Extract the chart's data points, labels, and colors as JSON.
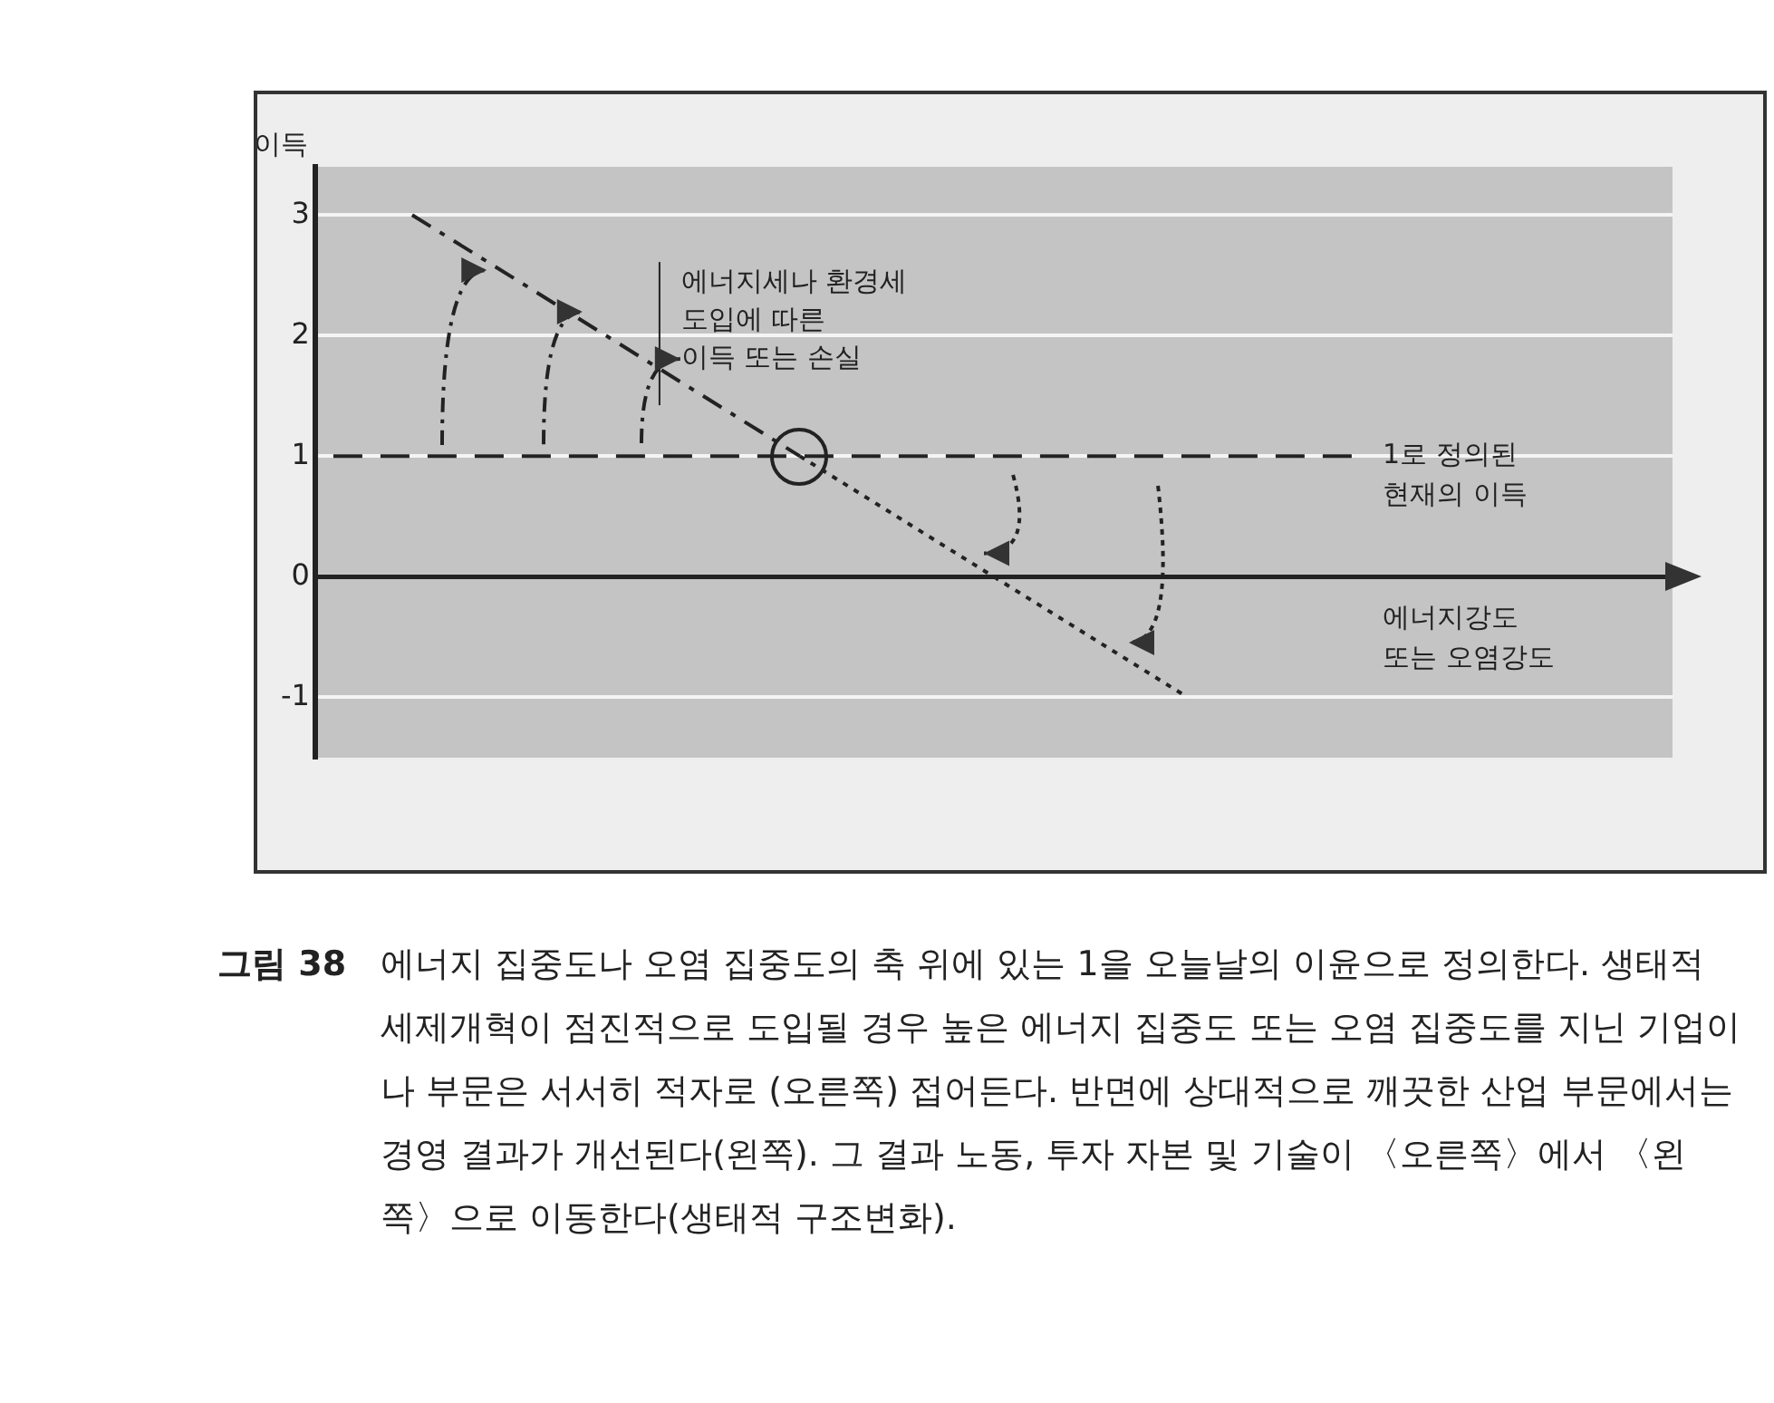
{
  "chart_data": {
    "type": "line",
    "ylabel": "이득",
    "xlabel": "에너지강도\n또는 오염강도",
    "categories": [
      null,
      null,
      null,
      null,
      null,
      null,
      null
    ],
    "series": [
      {
        "color": "#222222",
        "line_style": "dashed",
        "values": [
          3,
          2,
          1,
          null,
          null,
          null,
          null
        ]
      },
      {
        "color": "#222222",
        "line_style": "dotted",
        "values": [
          null,
          null,
          1,
          0,
          -1,
          null,
          null
        ]
      }
    ],
    "ylim": [
      -1.5,
      3.4
    ],
    "yticks": [
      -1,
      0,
      1,
      2,
      3
    ],
    "grid": "y",
    "marker": "none",
    "legend": false,
    "ref_lines": [
      {
        "axis": "y",
        "value": 1,
        "label": "1로 정의된\n현재의 이득",
        "line_style": "dashed",
        "color": "#222222"
      }
    ],
    "annotations": [
      "에너지세나 환경세\n도입에 따른\n이득 또는 손실",
      "그림 38",
      "에너지 집중도나 오염 집중도의 축 위에 있는 1을 오늘날의 이윤으로 정의한다. 생태적 세제개혁이 점진적으로 도입될 경우 높은 에너지 집중도 또는 오염 집중도를 지닌 기업이나 부문은 서서히 적자로 (오른쪽) 접어든다. 반면에 상대적으로 깨끗한 산업 부문에서는 경영 결과가 개선된다(왼쪽). 그 결과 노동, 투자 자본 및 기술이 〈오른쪽〉에서 〈왼쪽〉으로 이동한다(생태적 구조변화)."
    ]
  }
}
